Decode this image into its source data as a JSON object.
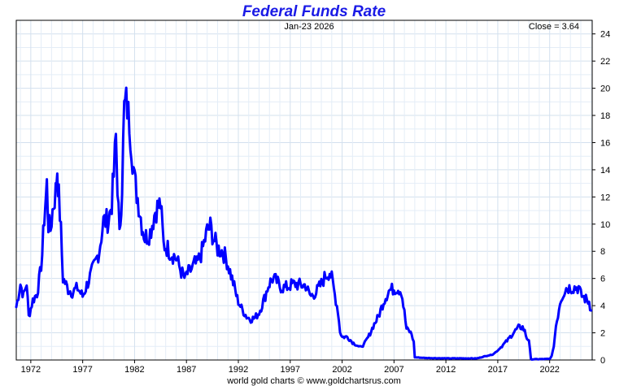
{
  "chart_data": {
    "type": "line",
    "title": "Federal Funds Rate",
    "date_label": "Jan-23  2026",
    "close_label": "Close = 3.64",
    "credit": "world gold charts © www.goldchartsrus.com",
    "color": "#0000ff",
    "grid": true,
    "x_ticks": [
      "1972",
      "1977",
      "1982",
      "1987",
      "1992",
      "1997",
      "2002",
      "2007",
      "2012",
      "2017",
      "2022"
    ],
    "y_ticks": [
      0,
      2,
      4,
      6,
      8,
      10,
      12,
      14,
      16,
      18,
      20,
      22,
      24
    ],
    "xlim": [
      1970.6,
      2026.1
    ],
    "ylim": [
      0,
      25
    ],
    "series": [
      {
        "x": [
          1970.6,
          1971.0,
          1971.3,
          1971.6,
          1971.8,
          1972.2,
          1972.6,
          1972.9,
          1973.1,
          1973.3,
          1973.55,
          1973.7,
          1973.9,
          1974.1,
          1974.4,
          1974.55,
          1974.7,
          1974.9,
          1975.1,
          1975.3,
          1975.6,
          1976.0,
          1976.5,
          1977.0,
          1977.4,
          1977.8,
          1978.2,
          1978.6,
          1979.0,
          1979.5,
          1979.8,
          1980.0,
          1980.2,
          1980.35,
          1980.55,
          1980.8,
          1981.0,
          1981.2,
          1981.5,
          1981.8,
          1982.0,
          1982.4,
          1982.7,
          1983.0,
          1983.5,
          1984.0,
          1984.5,
          1984.8,
          1985.1,
          1985.5,
          1986.0,
          1986.5,
          1986.9,
          1987.0,
          1987.3,
          1987.6,
          1987.8,
          1988.0,
          1988.5,
          1989.0,
          1989.3,
          1989.6,
          1990.0,
          1990.5,
          1990.9,
          1991.2,
          1991.5,
          1991.9,
          1992.3,
          1992.8,
          1993.2,
          1993.6,
          1994.0,
          1994.5,
          1994.9,
          1995.3,
          1995.7,
          1996.0,
          1996.5,
          1997.0,
          1997.5,
          1998.0,
          1998.5,
          1998.8,
          1999.0,
          1999.5,
          2000.0,
          2000.4,
          2000.8,
          2001.0,
          2001.3,
          2001.6,
          2001.8,
          2002.0,
          2002.5,
          2003.0,
          2003.6,
          2004.0,
          2004.6,
          2005.0,
          2005.5,
          2006.0,
          2006.5,
          2007.0,
          2007.4,
          2007.7,
          2008.0,
          2008.2,
          2008.5,
          2008.7,
          2008.9,
          2009.0,
          2010.0,
          2012.0,
          2015.0,
          2015.9,
          2016.5,
          2017.0,
          2017.5,
          2018.0,
          2018.5,
          2019.0,
          2019.4,
          2019.6,
          2019.8,
          2020.0,
          2020.2,
          2022.0,
          2022.2,
          2022.4,
          2022.6,
          2022.8,
          2023.0,
          2023.3,
          2023.6,
          2024.0,
          2024.6,
          2024.8,
          2025.0,
          2025.6,
          2025.8,
          2026.0
        ],
        "values": [
          3.9,
          5.6,
          4.7,
          5.7,
          3.2,
          4.4,
          4.9,
          6.3,
          7.8,
          10.5,
          12.9,
          10.0,
          9.6,
          11.0,
          12.4,
          14.1,
          12.0,
          9.5,
          6.0,
          5.7,
          5.2,
          5.0,
          5.3,
          4.7,
          5.5,
          6.3,
          7.1,
          8.1,
          10.2,
          10.3,
          11.6,
          13.6,
          16.4,
          13.0,
          9.0,
          13.0,
          18.5,
          19.0,
          17.6,
          15.0,
          13.2,
          11.5,
          10.0,
          9.0,
          9.4,
          11.0,
          11.5,
          8.5,
          8.3,
          7.9,
          7.5,
          6.5,
          5.9,
          6.3,
          6.5,
          6.8,
          7.1,
          7.0,
          8.0,
          9.5,
          9.8,
          9.0,
          8.2,
          8.0,
          7.3,
          6.5,
          5.7,
          4.5,
          3.8,
          3.2,
          3.0,
          3.1,
          3.5,
          4.5,
          5.5,
          6.0,
          5.8,
          5.4,
          5.3,
          5.5,
          5.6,
          5.5,
          5.5,
          4.9,
          4.7,
          5.0,
          5.6,
          6.2,
          6.5,
          6.0,
          4.8,
          3.6,
          2.1,
          1.7,
          1.7,
          1.3,
          1.0,
          1.0,
          1.8,
          2.5,
          3.2,
          4.3,
          5.1,
          5.25,
          5.25,
          5.1,
          3.5,
          2.3,
          2.1,
          1.9,
          1.3,
          0.2,
          0.15,
          0.12,
          0.12,
          0.3,
          0.4,
          0.7,
          1.1,
          1.5,
          2.0,
          2.4,
          2.4,
          2.1,
          1.6,
          1.5,
          0.05,
          0.08,
          0.3,
          1.0,
          2.5,
          3.3,
          4.3,
          4.9,
          5.3,
          5.33,
          5.33,
          5.33,
          4.8,
          4.4,
          4.3,
          3.64
        ]
      }
    ]
  }
}
